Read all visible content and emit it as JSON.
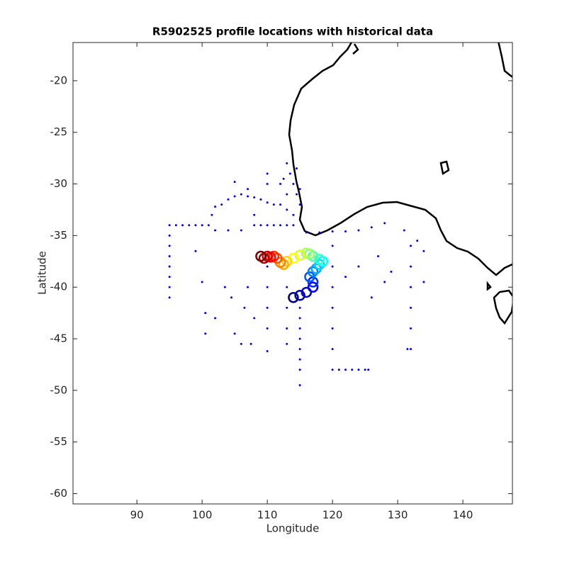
{
  "chart_data": {
    "type": "scatter",
    "title": "R5902525 profile locations with historical data",
    "x_label": "Longitude",
    "y_label": "Latitude",
    "xlim": [
      80.2,
      147.6
    ],
    "ylim": [
      -61.0,
      -16.3
    ],
    "xticks": [
      90,
      100,
      110,
      120,
      130,
      140
    ],
    "yticks": [
      -20,
      -25,
      -30,
      -35,
      -40,
      -45,
      -50,
      -55,
      -60
    ],
    "grid": false,
    "series": [
      {
        "color": "#0000ff",
        "x": [
          95,
          95,
          95,
          95,
          95,
          95,
          95,
          95,
          96,
          97,
          98,
          99,
          100,
          101,
          101.5,
          102,
          103,
          104,
          105,
          106,
          107,
          108,
          109,
          110,
          111,
          112,
          102,
          104,
          106,
          108,
          109,
          110,
          111,
          112,
          113,
          114,
          113,
          113.5,
          114,
          114.5,
          115,
          113,
          112,
          113,
          114,
          115,
          112.5,
          114.5,
          105,
          107,
          110,
          110,
          108,
          110,
          110,
          110,
          110,
          110,
          115,
          115,
          115,
          115,
          115,
          115,
          115,
          115,
          113,
          113,
          113,
          113,
          116,
          118,
          120,
          122,
          124,
          126,
          128,
          120,
          120,
          120,
          120,
          120,
          120,
          120,
          121,
          122,
          123,
          124,
          125,
          125.5,
          132,
          132,
          132,
          132,
          132,
          132,
          131,
          133,
          134,
          134,
          131.5,
          99,
          100,
          100.5,
          100.5,
          102,
          103.5,
          104.5,
          105,
          106,
          107.5,
          106.5,
          107,
          108,
          122,
          124,
          127,
          128,
          129,
          126
        ],
        "y": [
          -34,
          -35,
          -36,
          -37,
          -38,
          -39,
          -40,
          -41,
          -34,
          -34,
          -34,
          -34,
          -34,
          -34,
          -33,
          -32.2,
          -32,
          -31.5,
          -31.2,
          -31,
          -31.2,
          -31.3,
          -31.5,
          -31.8,
          -32,
          -32,
          -34.5,
          -34.5,
          -34.5,
          -34,
          -34,
          -34,
          -34,
          -34,
          -34,
          -34,
          -28,
          -29,
          -30,
          -31,
          -32,
          -31,
          -30,
          -32.5,
          -33,
          -30.5,
          -29.5,
          -28.5,
          -29.8,
          -30.5,
          -30,
          -29,
          -33,
          -38,
          -40,
          -42,
          -44,
          -46.2,
          -42,
          -43,
          -44,
          -45,
          -46,
          -47,
          -48,
          -49.5,
          -40,
          -42,
          -44,
          -45.5,
          -34.7,
          -34.7,
          -34.6,
          -34.6,
          -34.5,
          -34.2,
          -33.8,
          -36,
          -38,
          -40,
          -42,
          -44,
          -46,
          -48,
          -48,
          -48,
          -48,
          -48,
          -48,
          -48,
          -36,
          -38,
          -40,
          -42,
          -44,
          -46,
          -34.5,
          -35.5,
          -36.5,
          -39.5,
          -46,
          -36.5,
          -39.5,
          -42.5,
          -44.5,
          -43,
          -40,
          -41,
          -44.5,
          -45.5,
          -45.5,
          -42,
          -40,
          -43,
          -39,
          -38,
          -37,
          -39.5,
          -38.5,
          -41
        ]
      },
      {
        "colormap": "jet",
        "x": [
          114,
          115,
          116,
          117,
          117,
          116.5,
          117,
          117.5,
          118,
          118.5,
          118,
          117,
          116.5,
          116,
          115,
          114,
          113,
          112.5,
          112,
          111.5,
          111,
          110.5,
          110,
          109.5,
          109
        ],
        "y": [
          -41,
          -40.8,
          -40.5,
          -40,
          -39.5,
          -39,
          -38.5,
          -38.2,
          -37.8,
          -37.5,
          -37.3,
          -37,
          -36.8,
          -36.7,
          -36.9,
          -37.2,
          -37.5,
          -37.8,
          -37.6,
          -37.2,
          -37,
          -37.1,
          -37,
          -37.2,
          -37
        ]
      }
    ]
  }
}
